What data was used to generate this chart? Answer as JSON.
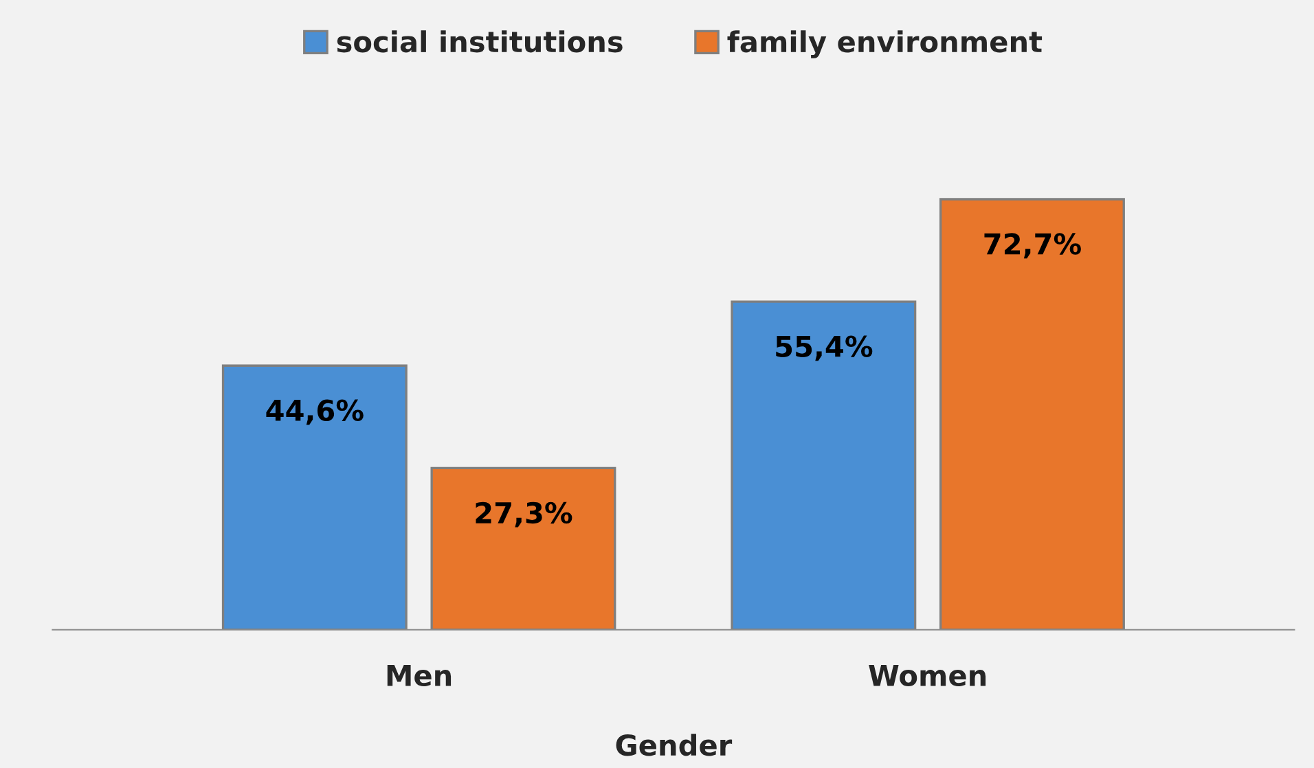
{
  "chart_data": {
    "type": "bar",
    "xlabel": "Gender",
    "categories": [
      "Men",
      "Women"
    ],
    "series": [
      {
        "name": "social institutions",
        "color": "#4a8fd4",
        "values": [
          44.6,
          55.4
        ],
        "value_labels": [
          "44,6%",
          "55,4%"
        ]
      },
      {
        "name": "family environment",
        "color": "#e8762b",
        "values": [
          27.3,
          72.7
        ],
        "value_labels": [
          "27,3%",
          "72,7%"
        ]
      }
    ],
    "legend": "top",
    "grid": false
  }
}
